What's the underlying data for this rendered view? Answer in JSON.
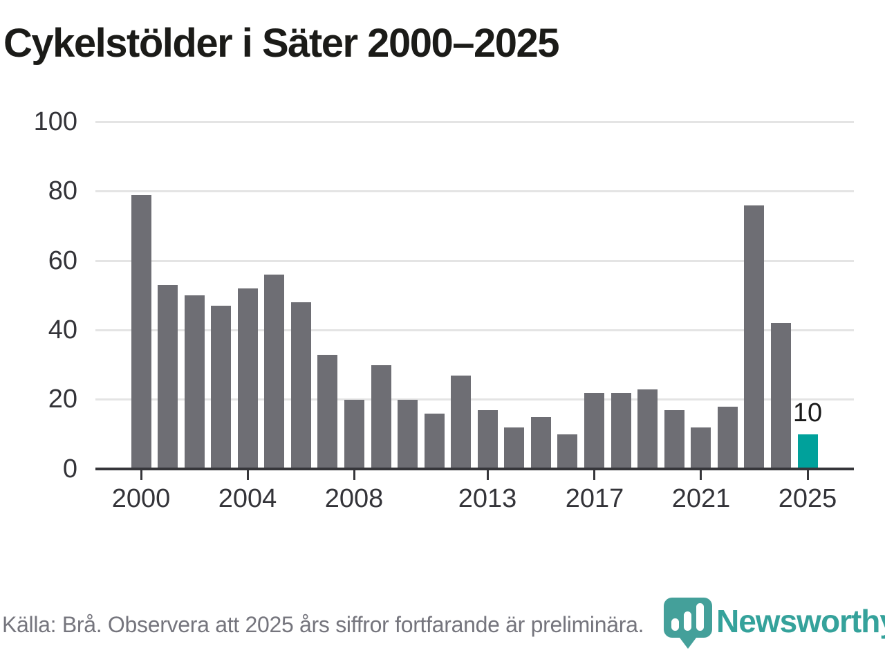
{
  "title": "Cykelstölder i Säter 2000–2025",
  "footer": {
    "source_note": "Källa: Brå. Observera att 2025 års siffror fortfarande är preliminära.",
    "brand": "Newsworthy"
  },
  "colors": {
    "title_text": "#1b1b18",
    "bar": "#6e6e74",
    "highlight": "#00a19b",
    "grid": "#e4e4e4",
    "axis": "#36363a",
    "tick_label": "#333338",
    "data_label": "#1a1a1a",
    "footer_text": "#75757d",
    "brand_teal": "#35a29b",
    "logo_mark_teal": "#44a09a"
  },
  "chart_data": {
    "type": "bar",
    "title": "Cykelstölder i Säter 2000–2025",
    "categories": [
      2000,
      2001,
      2002,
      2003,
      2004,
      2005,
      2006,
      2007,
      2008,
      2009,
      2010,
      2011,
      2012,
      2013,
      2014,
      2015,
      2016,
      2017,
      2018,
      2019,
      2020,
      2021,
      2022,
      2023,
      2024,
      2025
    ],
    "values": [
      79,
      53,
      50,
      47,
      52,
      56,
      48,
      33,
      20,
      30,
      20,
      16,
      27,
      17,
      12,
      15,
      10,
      22,
      22,
      23,
      17,
      12,
      18,
      76,
      42,
      10
    ],
    "xlabel": "",
    "ylabel": "",
    "ylim": [
      0,
      100
    ],
    "yticks": [
      0,
      20,
      40,
      60,
      80,
      100
    ],
    "xticks": [
      2000,
      2004,
      2008,
      2013,
      2017,
      2021,
      2025
    ],
    "grid": true,
    "legend": false,
    "highlight": {
      "category": 2025,
      "value_label": "10"
    }
  }
}
